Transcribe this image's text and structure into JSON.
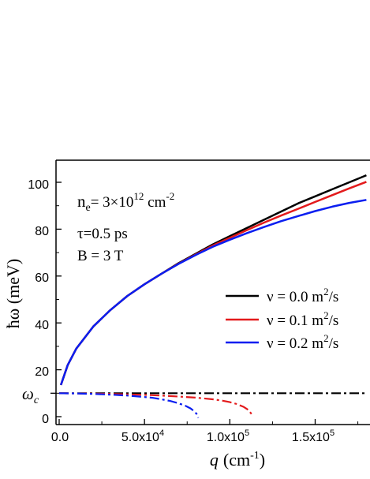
{
  "chart_data": {
    "type": "line",
    "xlabel_main": "q",
    "xlabel_unit": "(cm",
    "xlabel_exp": "-1",
    "xlabel_close": ")",
    "ylabel": "ħω (meV)",
    "xlim": [
      -2000,
      180000
    ],
    "ylim": [
      -3,
      110
    ],
    "x_ticks": [
      {
        "value": 0,
        "label": "0.0"
      },
      {
        "value": 50000,
        "label": "5.0x10"
      },
      {
        "value": 100000,
        "label": "1.0x10"
      },
      {
        "value": 150000,
        "label": "1.5x10"
      }
    ],
    "x_tick_exponents": [
      "",
      "4",
      "5",
      "5"
    ],
    "y_ticks": [
      {
        "value": 0,
        "label": "0"
      },
      {
        "value": 20,
        "label": "20"
      },
      {
        "value": 40,
        "label": "40"
      },
      {
        "value": 60,
        "label": "60"
      },
      {
        "value": 80,
        "label": "80"
      },
      {
        "value": 100,
        "label": "100"
      }
    ],
    "omega_c": {
      "value": 10,
      "label_main": "ω",
      "label_sub": "c"
    },
    "annotations": {
      "ne_main": "n",
      "ne_sub": "e",
      "ne_eq": "= 3×10",
      "ne_exp": "12",
      "ne_unit": " cm",
      "ne_unit_exp": "-2",
      "tau": "τ=0.5 ps",
      "field": "B = 3 T"
    },
    "legend_position": "center-right",
    "series": [
      {
        "name": "ν = 0.0 m²/s",
        "legend_main": "ν = 0.0 m",
        "legend_exp": "2",
        "legend_tail": "/s",
        "color": "#000000",
        "x": [
          1000,
          5000,
          10000,
          20000,
          30000,
          40000,
          50000,
          60000,
          70000,
          80000,
          90000,
          100000,
          110000,
          120000,
          130000,
          140000,
          150000,
          160000,
          170000,
          180000
        ],
        "y": [
          13.5,
          22,
          29,
          38.5,
          45.5,
          51.5,
          56.5,
          61,
          65.5,
          69.5,
          73.5,
          77,
          80.5,
          84,
          87.5,
          91,
          94,
          97,
          100,
          103
        ]
      },
      {
        "name": "ν = 0.1 m²/s",
        "legend_main": "ν = 0.1 m",
        "legend_exp": "2",
        "legend_tail": "/s",
        "color": "#e31a1c",
        "x": [
          1000,
          5000,
          10000,
          20000,
          30000,
          40000,
          50000,
          60000,
          70000,
          80000,
          90000,
          100000,
          110000,
          120000,
          130000,
          140000,
          150000,
          160000,
          170000,
          180000
        ],
        "y": [
          13.5,
          22,
          29,
          38.5,
          45.5,
          51.5,
          56.5,
          61,
          65.3,
          69.2,
          73,
          76.3,
          79.6,
          82.8,
          85.8,
          88.7,
          91.6,
          94.5,
          97.4,
          100.2
        ]
      },
      {
        "name": "ν = 0.2 m²/s",
        "legend_main": "ν = 0.2 m",
        "legend_exp": "2",
        "legend_tail": "/s",
        "color": "#0a1ef0",
        "x": [
          1000,
          5000,
          10000,
          20000,
          30000,
          40000,
          50000,
          60000,
          70000,
          80000,
          90000,
          100000,
          110000,
          120000,
          130000,
          140000,
          150000,
          160000,
          170000,
          180000
        ],
        "y": [
          13.5,
          22,
          29,
          38.5,
          45.5,
          51.5,
          56.5,
          61,
          65.2,
          69,
          72.5,
          75.5,
          78.3,
          80.9,
          83.4,
          85.6,
          87.7,
          89.6,
          91.2,
          92.5
        ]
      }
    ],
    "damped_series": [
      {
        "color": "#000000",
        "x": [
          0,
          20000,
          40000,
          60000,
          80000,
          100000,
          120000,
          140000,
          160000,
          180000
        ],
        "y": [
          10,
          10,
          10,
          10,
          10,
          10,
          10,
          10,
          10,
          10
        ]
      },
      {
        "color": "#e31a1c",
        "x": [
          0,
          10000,
          20000,
          30000,
          40000,
          50000,
          60000,
          70000,
          80000,
          90000,
          95000,
          100000,
          104000,
          108000,
          111000,
          113000
        ],
        "y": [
          10,
          9.9,
          9.8,
          9.7,
          9.5,
          9.3,
          9,
          8.6,
          8.1,
          7.4,
          6.9,
          6.2,
          5.4,
          4.2,
          2.8,
          0.8
        ]
      },
      {
        "color": "#0a1ef0",
        "x": [
          0,
          10000,
          20000,
          30000,
          40000,
          50000,
          55000,
          60000,
          65000,
          70000,
          74000,
          77000,
          79000,
          80500,
          81500
        ],
        "y": [
          10,
          9.9,
          9.7,
          9.4,
          9.0,
          8.4,
          8.0,
          7.4,
          6.7,
          5.7,
          4.6,
          3.5,
          2.4,
          1.2,
          -0.5
        ]
      }
    ]
  }
}
